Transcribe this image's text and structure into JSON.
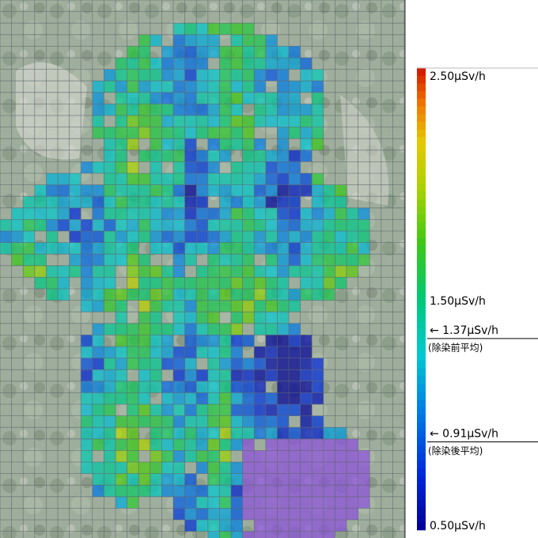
{
  "legend": {
    "min": 0.5,
    "max": 2.5,
    "ticks": [
      {
        "value": 2.5,
        "label": "2.50μSv/h"
      },
      {
        "value": 1.5,
        "label": "1.50μSv/h"
      },
      {
        "value": 0.5,
        "label": "0.50μSv/h"
      }
    ],
    "averages": [
      {
        "value": 1.37,
        "label": "← 1.37μSv/h",
        "note": "(除染前平均)"
      },
      {
        "value": 0.91,
        "label": "← 0.91μSv/h",
        "note": "(除染後平均)"
      }
    ]
  }
}
